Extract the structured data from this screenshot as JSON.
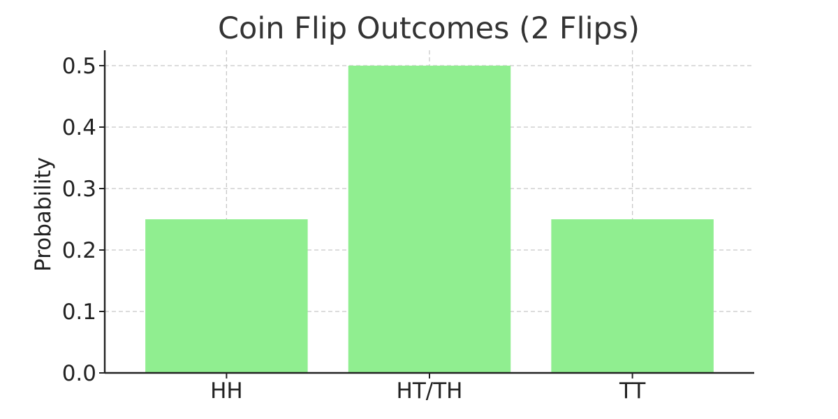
{
  "chart_data": {
    "type": "bar",
    "title": "Coin Flip Outcomes (2 Flips)",
    "xlabel": "",
    "ylabel": "Probability",
    "categories": [
      "HH",
      "HT/TH",
      "TT"
    ],
    "values": [
      0.25,
      0.5,
      0.25
    ],
    "ylim": [
      0,
      0.525
    ],
    "yticks": [
      0.0,
      0.1,
      0.2,
      0.3,
      0.4,
      0.5
    ],
    "ytick_labels": [
      "0.0",
      "0.1",
      "0.2",
      "0.3",
      "0.4",
      "0.5"
    ],
    "grid": true,
    "bar_color": "#90EE90"
  }
}
